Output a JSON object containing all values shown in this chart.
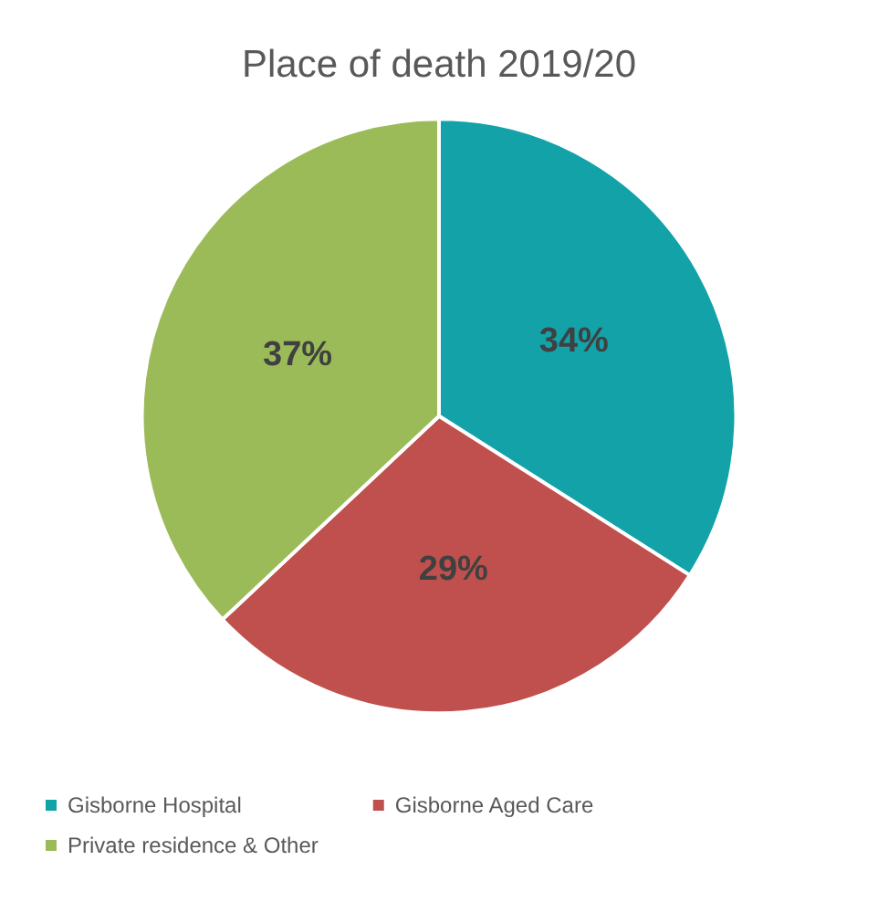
{
  "chart_data": {
    "type": "pie",
    "title": "Place of death 2019/20",
    "categories": [
      "Gisborne Hospital",
      "Gisborne Aged Care",
      "Private residence & Other"
    ],
    "values": [
      34,
      29,
      37
    ],
    "colors": [
      "#12a2a8",
      "#c0504d",
      "#9bbb59"
    ],
    "value_labels": [
      "34%",
      "29%",
      "37%"
    ],
    "legend": "bottom"
  }
}
